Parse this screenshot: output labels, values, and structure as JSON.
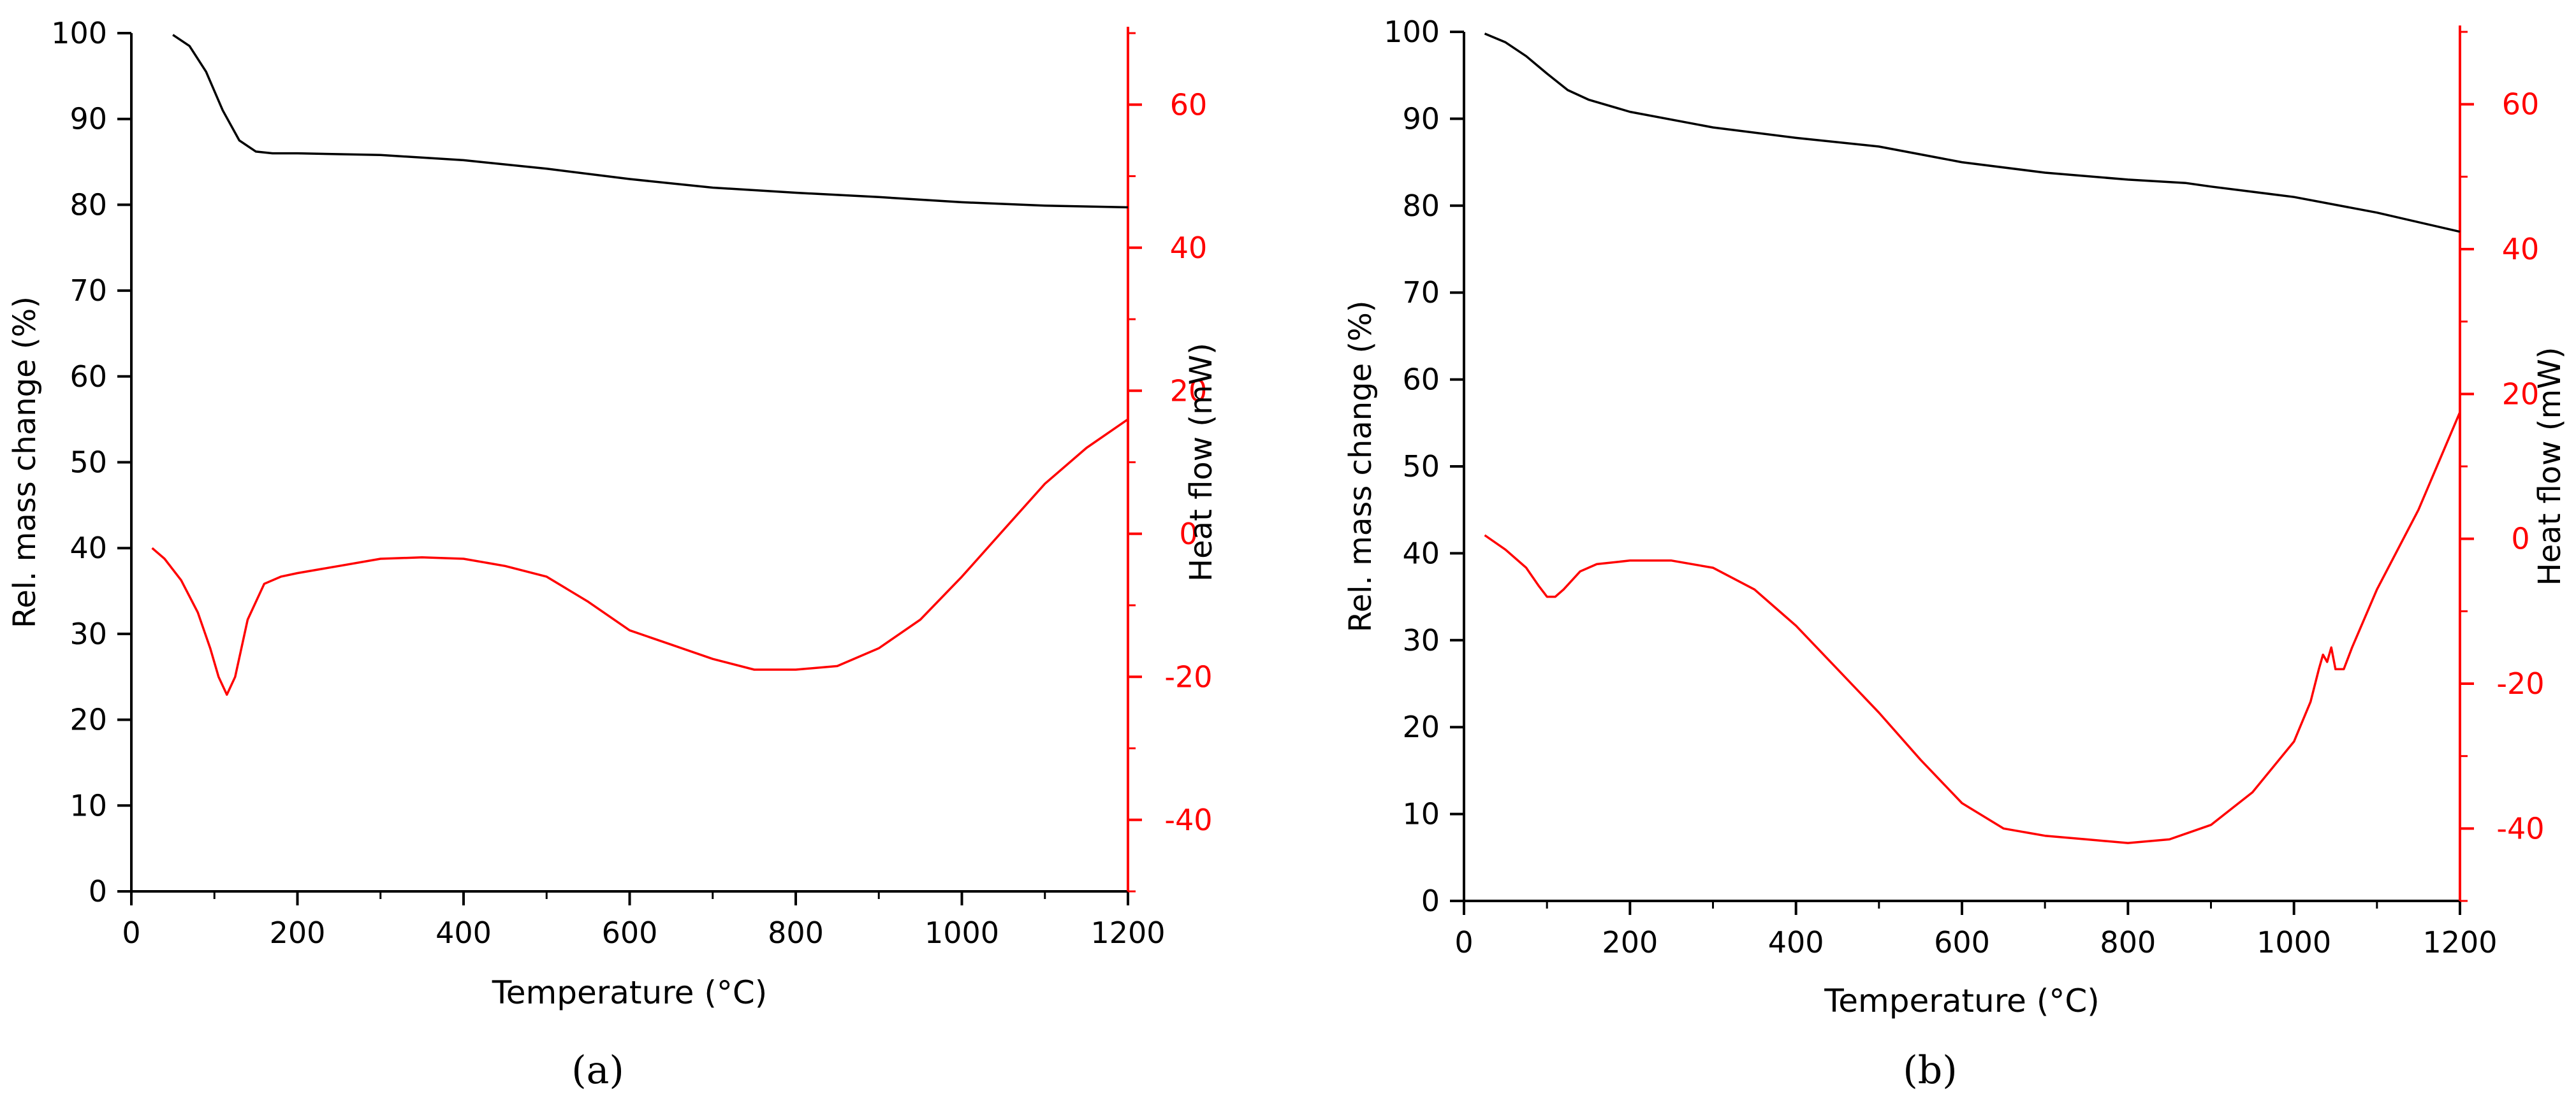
{
  "chart_data": [
    {
      "type": "line",
      "panel_label": "(a)",
      "xlabel": "Temperature (°C)",
      "ylabel": "Rel. mass change (%)",
      "y2label": "Heat flow (mW)",
      "xlim": [
        0,
        1200
      ],
      "ylim": [
        0,
        100
      ],
      "y2lim": [
        -50,
        70
      ],
      "x_ticks": [
        0,
        200,
        400,
        600,
        800,
        1000,
        1200
      ],
      "y_ticks": [
        0,
        10,
        20,
        30,
        40,
        50,
        60,
        70,
        80,
        90,
        100
      ],
      "y2_ticks": [
        -40,
        -20,
        0,
        20,
        40,
        60
      ],
      "colors": {
        "mass": "#000000",
        "heat": "#ff0000"
      },
      "series": [
        {
          "axis": "left",
          "x": [
            50,
            70,
            90,
            110,
            130,
            150,
            170,
            200,
            300,
            400,
            500,
            600,
            700,
            800,
            900,
            1000,
            1100,
            1200
          ],
          "y": [
            99.8,
            98.5,
            95.5,
            91.0,
            87.5,
            86.2,
            86.0,
            86.0,
            85.8,
            85.2,
            84.2,
            83.0,
            82.0,
            81.4,
            80.9,
            80.3,
            79.9,
            79.7
          ]
        },
        {
          "axis": "right",
          "x": [
            25,
            40,
            60,
            80,
            95,
            105,
            115,
            125,
            140,
            160,
            180,
            200,
            250,
            300,
            350,
            400,
            450,
            500,
            550,
            600,
            650,
            700,
            750,
            800,
            850,
            900,
            950,
            1000,
            1050,
            1100,
            1150,
            1200
          ],
          "y": [
            -2,
            -3.5,
            -6.5,
            -11,
            -16,
            -20,
            -22.5,
            -20,
            -12,
            -7,
            -6,
            -5.5,
            -4.5,
            -3.5,
            -3.3,
            -3.5,
            -4.5,
            -6,
            -9.5,
            -13.5,
            -15.5,
            -17.5,
            -19,
            -19,
            -18.5,
            -16,
            -12,
            -6,
            0.5,
            7,
            12,
            16
          ]
        }
      ]
    },
    {
      "type": "line",
      "panel_label": "(b)",
      "xlabel": "Temperature (°C)",
      "ylabel": "Rel. mass change (%)",
      "y2label": "Heat flow (mW)",
      "xlim": [
        0,
        1200
      ],
      "ylim": [
        0,
        100
      ],
      "y2lim": [
        -50,
        70
      ],
      "x_ticks": [
        0,
        200,
        400,
        600,
        800,
        1000,
        1200
      ],
      "y_ticks": [
        0,
        10,
        20,
        30,
        40,
        50,
        60,
        70,
        80,
        90,
        100
      ],
      "y2_ticks": [
        -40,
        -20,
        0,
        20,
        40,
        60
      ],
      "colors": {
        "mass": "#000000",
        "heat": "#ff0000"
      },
      "series": [
        {
          "axis": "left",
          "x": [
            25,
            50,
            75,
            100,
            125,
            150,
            200,
            300,
            400,
            500,
            600,
            700,
            800,
            870,
            900,
            1000,
            1100,
            1200
          ],
          "y": [
            99.8,
            98.8,
            97.2,
            95.2,
            93.3,
            92.2,
            90.8,
            89.0,
            87.8,
            86.8,
            85.0,
            83.8,
            83.0,
            82.6,
            82.2,
            81.0,
            79.2,
            77.0
          ]
        },
        {
          "axis": "right",
          "x": [
            25,
            50,
            75,
            90,
            100,
            110,
            120,
            140,
            160,
            200,
            250,
            300,
            350,
            400,
            450,
            500,
            550,
            600,
            650,
            700,
            750,
            800,
            850,
            900,
            950,
            1000,
            1020,
            1030,
            1035,
            1040,
            1045,
            1050,
            1055,
            1060,
            1070,
            1100,
            1150,
            1200
          ],
          "y": [
            0.5,
            -1.5,
            -4,
            -6.5,
            -8,
            -8,
            -7,
            -4.5,
            -3.5,
            -3,
            -3,
            -4,
            -7,
            -12,
            -18,
            -24,
            -30.5,
            -36.5,
            -40,
            -41,
            -41.5,
            -42,
            -41.5,
            -39.5,
            -35,
            -28,
            -22.5,
            -18,
            -16,
            -17,
            -15,
            -18,
            -18,
            -18,
            -15,
            -7,
            4,
            17.5
          ]
        }
      ]
    }
  ]
}
